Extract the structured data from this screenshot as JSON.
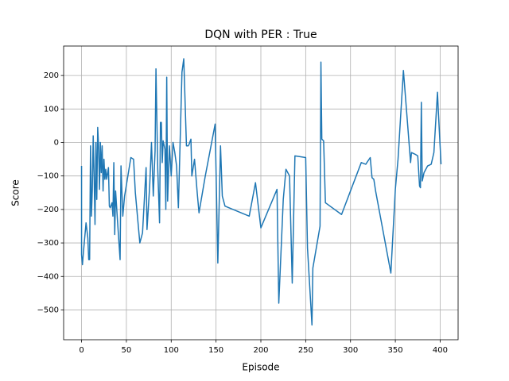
{
  "chart_data": {
    "type": "line",
    "title": "DQN with PER : True",
    "x_label": "Episode",
    "y_label": "Score",
    "x": [
      0,
      0,
      1,
      2,
      5,
      7,
      8,
      9,
      10,
      11,
      12,
      13,
      14,
      15,
      16,
      17,
      18,
      19,
      20,
      21,
      22,
      23,
      24,
      25,
      26,
      27,
      28,
      30,
      31,
      32,
      34,
      35,
      36,
      37,
      38,
      40,
      41,
      43,
      44,
      46,
      48,
      55,
      58,
      60,
      65,
      68,
      72,
      73,
      76,
      78,
      80,
      82,
      83,
      85,
      87,
      88,
      89,
      90,
      91,
      93,
      94,
      95,
      96,
      98,
      100,
      102,
      104,
      106,
      108,
      112,
      114,
      117,
      119,
      120,
      122,
      123,
      126,
      129,
      131,
      138,
      149,
      152,
      155,
      157,
      160,
      187,
      194,
      200,
      218,
      220,
      225,
      228,
      232,
      235,
      238,
      250,
      252,
      257,
      258,
      266,
      267,
      268,
      270,
      272,
      290,
      312,
      317,
      322,
      324,
      326,
      328,
      345,
      350,
      353,
      359,
      367,
      368,
      372,
      375,
      377,
      378,
      379,
      380,
      382,
      386,
      390,
      393,
      397,
      398,
      401
    ],
    "series": [
      {
        "name": "Score",
        "color": "#1f77b4",
        "values": [
          -70,
          -335,
          -365,
          -330,
          -240,
          -285,
          -350,
          -350,
          -10,
          -220,
          -140,
          20,
          -100,
          -245,
          0,
          -170,
          45,
          -10,
          -140,
          0,
          -90,
          -10,
          -145,
          -50,
          -110,
          -80,
          -110,
          -75,
          -190,
          -195,
          -180,
          -220,
          -60,
          -275,
          -145,
          -230,
          -270,
          -350,
          -70,
          -220,
          -160,
          -45,
          -50,
          -150,
          -300,
          -270,
          -75,
          -260,
          -130,
          0,
          -160,
          -25,
          220,
          -80,
          -240,
          60,
          60,
          -60,
          5,
          -20,
          -200,
          195,
          -175,
          -10,
          -100,
          0,
          -30,
          -70,
          -195,
          210,
          250,
          -10,
          -10,
          -5,
          10,
          -100,
          -50,
          -150,
          -210,
          -100,
          55,
          -360,
          -10,
          -160,
          -190,
          -220,
          -120,
          -255,
          -140,
          -480,
          -170,
          -80,
          -100,
          -420,
          -40,
          -45,
          -315,
          -545,
          -375,
          -250,
          240,
          10,
          5,
          -180,
          -215,
          -60,
          -65,
          -45,
          -105,
          -110,
          -145,
          -390,
          -140,
          -50,
          215,
          -60,
          -30,
          -35,
          -40,
          -130,
          -135,
          120,
          -115,
          -90,
          -70,
          -65,
          -30,
          150,
          90,
          -65
        ]
      }
    ],
    "xlim": [
      -20,
      420
    ],
    "ylim": [
      -589,
      288
    ],
    "xticks": [
      0,
      50,
      100,
      150,
      200,
      250,
      300,
      350,
      400
    ],
    "yticks": [
      {
        "value": -500,
        "label": "−500"
      },
      {
        "value": -400,
        "label": "−400"
      },
      {
        "value": -300,
        "label": "−300"
      },
      {
        "value": -200,
        "label": "−200"
      },
      {
        "value": -100,
        "label": "−100"
      },
      0,
      100,
      200
    ],
    "grid": true
  }
}
